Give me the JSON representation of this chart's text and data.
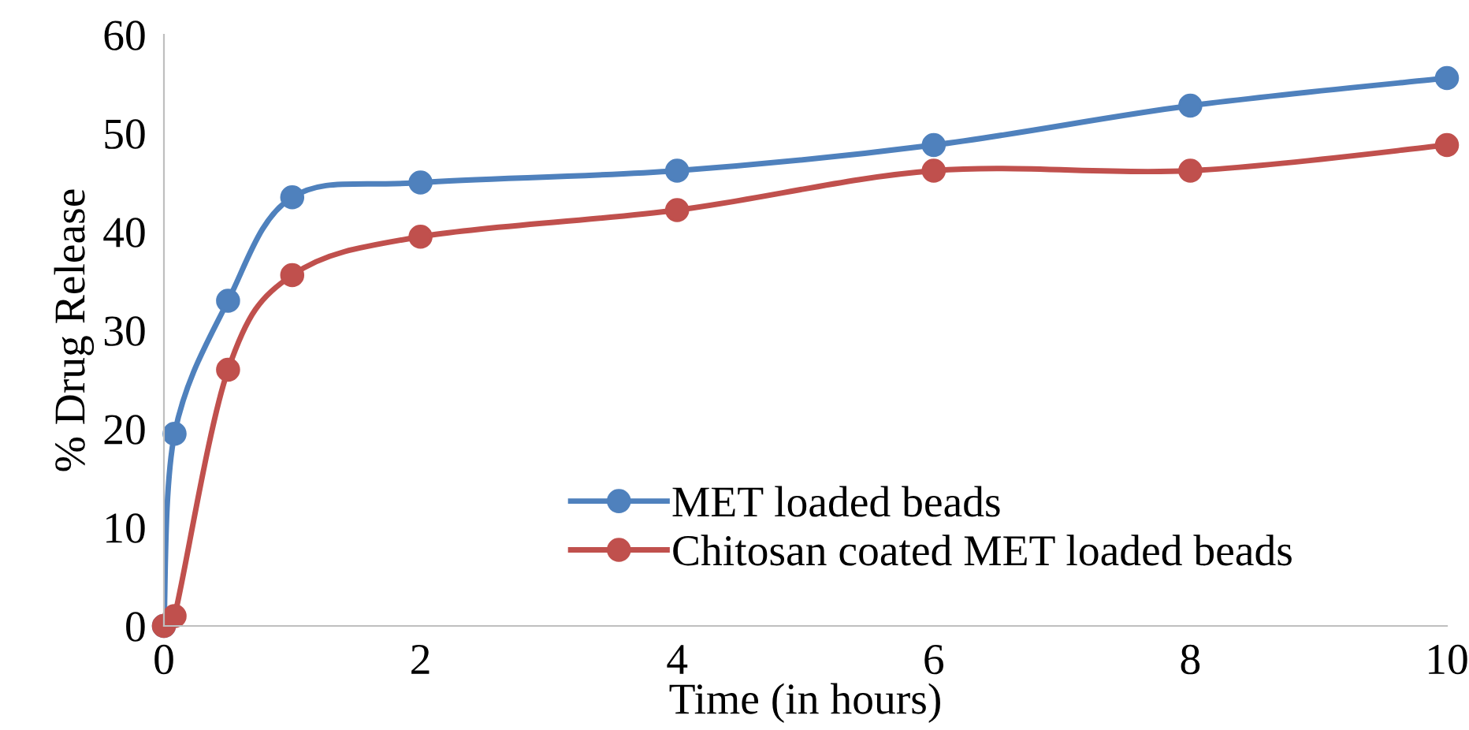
{
  "chart_data": {
    "type": "line",
    "xlabel": "Time (in hours)",
    "ylabel": "% Drug Release",
    "xlim": [
      0,
      10
    ],
    "xticks": [
      0,
      2,
      4,
      6,
      8,
      10
    ],
    "ylim": [
      0,
      60
    ],
    "yticks": [
      0,
      10,
      20,
      30,
      40,
      50,
      60
    ],
    "grid": false,
    "legend": "bottom",
    "marker": "circle",
    "line_style": "solid",
    "series": [
      {
        "name": "MET loaded beads",
        "color": "#4f81bd",
        "x": [
          0,
          0.083,
          0.5,
          1,
          2,
          4,
          6,
          8,
          10
        ],
        "values": [
          0,
          19.5,
          33,
          43.5,
          45,
          46.2,
          48.8,
          52.8,
          55.6
        ]
      },
      {
        "name": "Chitosan coated MET loaded beads",
        "color": "#c0504d",
        "x": [
          0,
          0.083,
          0.5,
          1,
          2,
          4,
          6,
          8,
          10
        ],
        "values": [
          0,
          1,
          26,
          35.6,
          39.5,
          42.2,
          46.2,
          46.2,
          48.8
        ]
      }
    ]
  }
}
